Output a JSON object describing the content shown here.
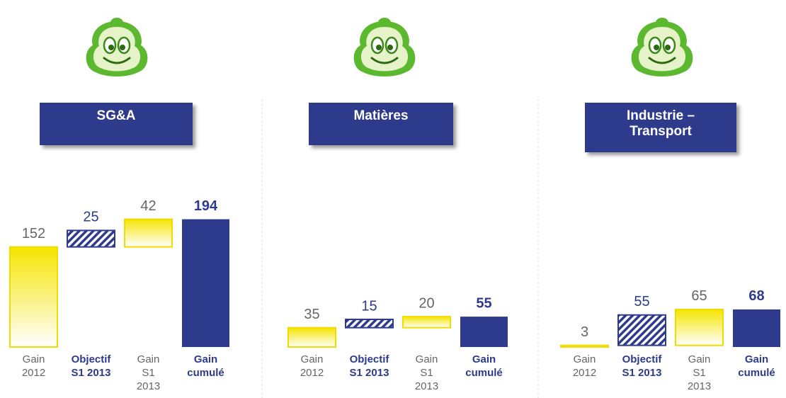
{
  "chart_data": [
    {
      "type": "waterfall",
      "title": "SG&A",
      "categories": [
        [
          "Gain",
          "2012"
        ],
        [
          "Objectif",
          "S1 2013"
        ],
        [
          "Gain",
          "S1",
          "2013"
        ],
        [
          "Gain",
          "cumulé"
        ]
      ],
      "values": [
        152,
        25,
        42,
        194
      ]
    },
    {
      "type": "waterfall",
      "title": "Matières",
      "categories": [
        [
          "Gain",
          "2012"
        ],
        [
          "Objectif",
          "S1 2013"
        ],
        [
          "Gain",
          "S1",
          "2013"
        ],
        [
          "Gain",
          "cumulé"
        ]
      ],
      "values": [
        35,
        15,
        20,
        55
      ]
    },
    {
      "type": "waterfall",
      "title": "Industrie – Transport",
      "categories": [
        [
          "Gain",
          "2012"
        ],
        [
          "Objectif",
          "S1 2013"
        ],
        [
          "Gain",
          "S1",
          "2013"
        ],
        [
          "Gain",
          "cumulé"
        ]
      ],
      "values": [
        3,
        55,
        65,
        68
      ]
    }
  ]
}
